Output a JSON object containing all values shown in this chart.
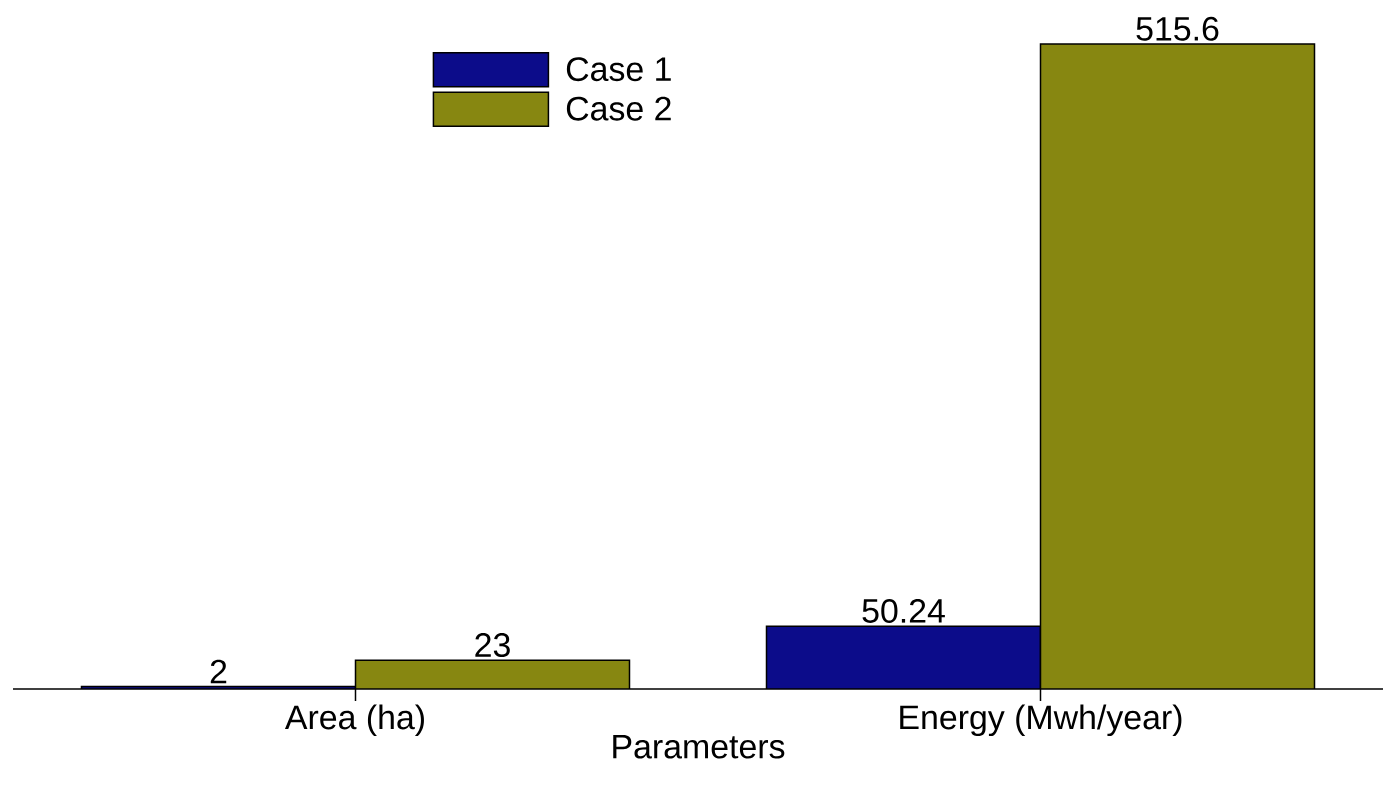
{
  "chart_data": {
    "type": "bar",
    "xlabel": "Parameters",
    "categories": [
      "Area (ha)",
      "Energy (Mwh/year)"
    ],
    "series": [
      {
        "name": "Case 1",
        "color": "#0c0c8a",
        "values": [
          2,
          50.24
        ]
      },
      {
        "name": "Case 2",
        "color": "#878711",
        "values": [
          23,
          515.6
        ]
      }
    ],
    "data_labels": true,
    "legend": "top"
  }
}
